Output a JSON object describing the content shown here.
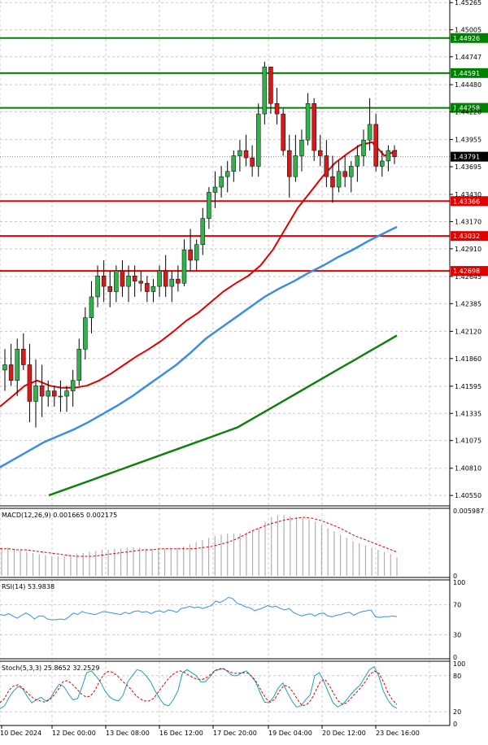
{
  "chart_data": {
    "type": "candlestick",
    "main_panel": {
      "ylim": [
        1.4045,
        1.4529
      ],
      "price_ticks": [
        "1.45265",
        "1.45005",
        "1.44747",
        "1.44480",
        "1.44220",
        "1.43955",
        "1.43695",
        "1.43430",
        "1.43170",
        "1.42910",
        "1.42645",
        "1.42385",
        "1.42120",
        "1.41860",
        "1.41595",
        "1.41335",
        "1.41075",
        "1.40810",
        "1.40550"
      ],
      "current_price": "1.43791",
      "levels": [
        {
          "label": "1.44926",
          "value": 1.44926,
          "color": "#008000"
        },
        {
          "label": "1.44591",
          "value": 1.44591,
          "color": "#008000"
        },
        {
          "label": "1.44258",
          "value": 1.44258,
          "color": "#008000"
        },
        {
          "label": "1.43366",
          "value": 1.43366,
          "color": "#e00000"
        },
        {
          "label": "1.43032",
          "value": 1.43032,
          "color": "#e00000"
        },
        {
          "label": "1.42698",
          "value": 1.42698,
          "color": "#e00000"
        }
      ],
      "candles": [
        [
          1.4175,
          1.4195,
          1.4155,
          1.418
        ],
        [
          1.418,
          1.42,
          1.416,
          1.4165
        ],
        [
          1.4165,
          1.4205,
          1.415,
          1.4195
        ],
        [
          1.4195,
          1.421,
          1.4175,
          1.418
        ],
        [
          1.418,
          1.42,
          1.4125,
          1.4145
        ],
        [
          1.4145,
          1.4185,
          1.412,
          1.416
        ],
        [
          1.416,
          1.418,
          1.413,
          1.415
        ],
        [
          1.415,
          1.4165,
          1.414,
          1.4155
        ],
        [
          1.4155,
          1.416,
          1.414,
          1.415
        ],
        [
          1.415,
          1.4165,
          1.4135,
          1.415
        ],
        [
          1.415,
          1.416,
          1.4135,
          1.4155
        ],
        [
          1.4155,
          1.4175,
          1.414,
          1.4165
        ],
        [
          1.4165,
          1.4205,
          1.416,
          1.4195
        ],
        [
          1.4195,
          1.4235,
          1.4185,
          1.4225
        ],
        [
          1.4225,
          1.426,
          1.421,
          1.4245
        ],
        [
          1.4245,
          1.4275,
          1.4235,
          1.4265
        ],
        [
          1.4265,
          1.428,
          1.424,
          1.4255
        ],
        [
          1.4255,
          1.427,
          1.4235,
          1.425
        ],
        [
          1.425,
          1.4275,
          1.424,
          1.427
        ],
        [
          1.427,
          1.428,
          1.4245,
          1.4255
        ],
        [
          1.4255,
          1.4275,
          1.424,
          1.4265
        ],
        [
          1.4265,
          1.4275,
          1.4245,
          1.426
        ],
        [
          1.426,
          1.427,
          1.425,
          1.4258
        ],
        [
          1.4258,
          1.4265,
          1.424,
          1.425
        ],
        [
          1.425,
          1.4262,
          1.424,
          1.4255
        ],
        [
          1.4255,
          1.4275,
          1.4245,
          1.427
        ],
        [
          1.427,
          1.4285,
          1.4245,
          1.4255
        ],
        [
          1.4255,
          1.427,
          1.424,
          1.4262
        ],
        [
          1.4262,
          1.4275,
          1.425,
          1.4258
        ],
        [
          1.4258,
          1.43,
          1.4255,
          1.429
        ],
        [
          1.429,
          1.431,
          1.427,
          1.428
        ],
        [
          1.428,
          1.43,
          1.427,
          1.4295
        ],
        [
          1.4295,
          1.433,
          1.4285,
          1.432
        ],
        [
          1.432,
          1.435,
          1.431,
          1.4345
        ],
        [
          1.4345,
          1.4365,
          1.433,
          1.435
        ],
        [
          1.435,
          1.437,
          1.434,
          1.436
        ],
        [
          1.436,
          1.4375,
          1.4345,
          1.4365
        ],
        [
          1.4365,
          1.4385,
          1.4355,
          1.438
        ],
        [
          1.438,
          1.4395,
          1.4365,
          1.4385
        ],
        [
          1.4385,
          1.44,
          1.437,
          1.4378
        ],
        [
          1.4378,
          1.439,
          1.436,
          1.437
        ],
        [
          1.437,
          1.443,
          1.436,
          1.442
        ],
        [
          1.442,
          1.447,
          1.441,
          1.4465
        ],
        [
          1.4465,
          1.4465,
          1.442,
          1.443
        ],
        [
          1.443,
          1.4445,
          1.441,
          1.442
        ],
        [
          1.442,
          1.4425,
          1.438,
          1.4385
        ],
        [
          1.4385,
          1.44,
          1.434,
          1.436
        ],
        [
          1.436,
          1.44,
          1.4355,
          1.438
        ],
        [
          1.438,
          1.4405,
          1.4365,
          1.4395
        ],
        [
          1.4395,
          1.444,
          1.439,
          1.443
        ],
        [
          1.443,
          1.4435,
          1.4375,
          1.4385
        ],
        [
          1.4385,
          1.44,
          1.437,
          1.438
        ],
        [
          1.438,
          1.4395,
          1.435,
          1.436
        ],
        [
          1.436,
          1.438,
          1.4335,
          1.435
        ],
        [
          1.435,
          1.4375,
          1.4345,
          1.4365
        ],
        [
          1.4365,
          1.438,
          1.435,
          1.436
        ],
        [
          1.436,
          1.4375,
          1.4345,
          1.437
        ],
        [
          1.437,
          1.439,
          1.4355,
          1.438
        ],
        [
          1.438,
          1.4405,
          1.437,
          1.4395
        ],
        [
          1.4395,
          1.4435,
          1.4385,
          1.441
        ],
        [
          1.441,
          1.442,
          1.4365,
          1.437
        ],
        [
          1.437,
          1.4385,
          1.436,
          1.4375
        ],
        [
          1.4375,
          1.439,
          1.4365,
          1.4385
        ],
        [
          1.4385,
          1.439,
          1.4372,
          1.4379
        ]
      ],
      "ma_fast": [
        1.414,
        1.415,
        1.416,
        1.4165,
        1.416,
        1.4158,
        1.4158,
        1.416,
        1.4165,
        1.4172,
        1.418,
        1.4188,
        1.4195,
        1.4203,
        1.4212,
        1.4222,
        1.423,
        1.424,
        1.425,
        1.4258,
        1.4265,
        1.4275,
        1.429,
        1.431,
        1.433,
        1.4345,
        1.436,
        1.4373,
        1.4382,
        1.439,
        1.4393,
        1.438,
        1.4385
      ],
      "ma_mid": [
        1.4082,
        1.409,
        1.4098,
        1.4106,
        1.4112,
        1.4118,
        1.4125,
        1.4133,
        1.4141,
        1.415,
        1.416,
        1.417,
        1.418,
        1.4192,
        1.4205,
        1.4215,
        1.4225,
        1.4235,
        1.4245,
        1.4253,
        1.426,
        1.4268,
        1.4275,
        1.4283,
        1.429,
        1.4298,
        1.4305,
        1.4312
      ],
      "ma_slow": [
        1.4055,
        1.406,
        1.4065,
        1.407,
        1.4075,
        1.408,
        1.4085,
        1.409,
        1.4095,
        1.41,
        1.4105,
        1.411,
        1.4115,
        1.412,
        1.4128,
        1.4136,
        1.4144,
        1.4152,
        1.416,
        1.4168,
        1.4176,
        1.4184,
        1.4192,
        1.42,
        1.4208
      ]
    },
    "macd": {
      "label": "MACD(12,26,9) 0.001665 0.002175",
      "ticks": [
        "0.005987",
        "0"
      ],
      "ylim": [
        0,
        0.006
      ],
      "histogram": [
        0.0026,
        0.0026,
        0.0025,
        0.0024,
        0.0022,
        0.0021,
        0.002,
        0.0019,
        0.0018,
        0.0018,
        0.0018,
        0.0019,
        0.002,
        0.0021,
        0.0022,
        0.0023,
        0.0024,
        0.0024,
        0.0025,
        0.0025,
        0.0026,
        0.0026,
        0.0026,
        0.0025,
        0.0025,
        0.0025,
        0.0025,
        0.0025,
        0.0026,
        0.0027,
        0.0029,
        0.0031,
        0.0033,
        0.0035,
        0.0037,
        0.0038,
        0.0039,
        0.0039,
        0.0039,
        0.004,
        0.0041,
        0.0044,
        0.005,
        0.0054,
        0.0056,
        0.0056,
        0.0055,
        0.0054,
        0.0053,
        0.0052,
        0.005,
        0.0047,
        0.0044,
        0.0041,
        0.0038,
        0.0035,
        0.0032,
        0.003,
        0.0028,
        0.0026,
        0.0024,
        0.0022,
        0.002,
        0.0017
      ],
      "signal": [
        0.0025,
        0.0025,
        0.0024,
        0.0024,
        0.0023,
        0.0022,
        0.0021,
        0.002,
        0.0019,
        0.0018,
        0.0018,
        0.0018,
        0.0019,
        0.002,
        0.0021,
        0.0022,
        0.0023,
        0.0024,
        0.0024,
        0.0025,
        0.0025,
        0.0025,
        0.0025,
        0.0025,
        0.0026,
        0.0027,
        0.0029,
        0.0031,
        0.0034,
        0.0038,
        0.0042,
        0.0045,
        0.0048,
        0.005,
        0.0052,
        0.0053,
        0.0054,
        0.0053,
        0.0051,
        0.0048,
        0.0045,
        0.0041,
        0.0037,
        0.0034,
        0.0031,
        0.0028,
        0.0025,
        0.0022
      ]
    },
    "rsi": {
      "label": "RSI(14) 53.9838",
      "ticks": [
        "100",
        "70",
        "30",
        "0"
      ],
      "ylim": [
        0,
        100
      ],
      "values": [
        57,
        56,
        58,
        55,
        52,
        56,
        59,
        56,
        51,
        55,
        55,
        51,
        50,
        50,
        51,
        50,
        54,
        59,
        57,
        61,
        59,
        58,
        57,
        59,
        61,
        60,
        59,
        58,
        57,
        60,
        58,
        61,
        62,
        60,
        61,
        58,
        61,
        62,
        60,
        63,
        62,
        60,
        65,
        66,
        68,
        66,
        67,
        65,
        67,
        69,
        75,
        73,
        76,
        80,
        78,
        72,
        70,
        67,
        66,
        62,
        64,
        66,
        69,
        67,
        68,
        65,
        63,
        65,
        60,
        57,
        55,
        57,
        58,
        55,
        58,
        59,
        55,
        54,
        56,
        57,
        59,
        60,
        56,
        59,
        61,
        62,
        63,
        54,
        53,
        54,
        54,
        55,
        54
      ]
    },
    "stoch": {
      "label": "Stoch(5,3,3) 25.8652 32.2529",
      "ticks": [
        "100",
        "80",
        "20",
        "0"
      ],
      "ylim": [
        0,
        100
      ],
      "k": [
        25,
        30,
        44,
        55,
        62,
        58,
        45,
        35,
        40,
        44,
        38,
        42,
        55,
        66,
        62,
        50,
        40,
        42,
        62,
        85,
        88,
        80,
        70,
        55,
        45,
        40,
        38,
        48,
        70,
        80,
        90,
        88,
        80,
        70,
        55,
        42,
        32,
        30,
        40,
        55,
        85,
        90,
        85,
        80,
        70,
        70,
        78,
        88,
        90,
        92,
        86,
        80,
        80,
        85,
        88,
        80,
        70,
        52,
        36,
        35,
        45,
        60,
        68,
        52,
        38,
        28,
        30,
        40,
        48,
        80,
        85,
        70,
        52,
        35,
        28,
        32,
        40,
        50,
        58,
        65,
        78,
        90,
        95,
        80,
        55,
        40,
        30,
        26
      ],
      "d": [
        35,
        42,
        56,
        63,
        65,
        60,
        52,
        45,
        40,
        38,
        36,
        40,
        48,
        58,
        70,
        72,
        66,
        58,
        50,
        45,
        46,
        55,
        70,
        82,
        87,
        86,
        80,
        72,
        65,
        58,
        48,
        42,
        38,
        38,
        42,
        52,
        62,
        72,
        80,
        86,
        88,
        85,
        80,
        76,
        74,
        74,
        78,
        84,
        90,
        92,
        90,
        86,
        84,
        84,
        85,
        84,
        78,
        68,
        54,
        42,
        36,
        42,
        55,
        64,
        62,
        52,
        40,
        30,
        32,
        40,
        55,
        70,
        74,
        64,
        50,
        38,
        32,
        36,
        44,
        52,
        60,
        70,
        82,
        88,
        84,
        70,
        52,
        40,
        32
      ]
    },
    "x_ticks": [
      "10 Dec 2024",
      "12 Dec 00:00",
      "13 Dec 08:00",
      "16 Dec 12:00",
      "17 Dec 20:00",
      "19 Dec 04:00",
      "20 Dec 12:00",
      "23 Dec 16:00"
    ]
  }
}
